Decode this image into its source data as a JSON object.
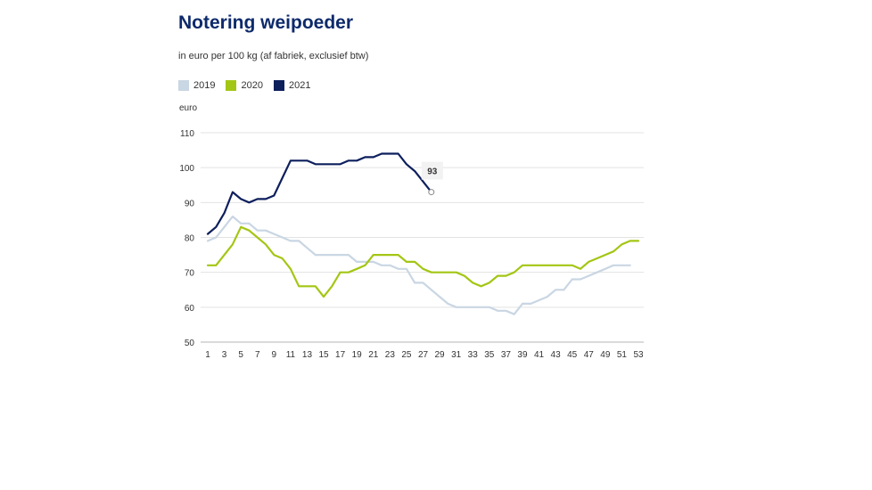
{
  "chart_data": {
    "type": "line",
    "title": "Notering weipoeder",
    "subtitle": "in euro per 100 kg (af fabriek, exclusief btw)",
    "ylabel": "euro",
    "xlabel": "",
    "ylim": [
      50,
      110
    ],
    "yticks": [
      50,
      60,
      70,
      80,
      90,
      100,
      110
    ],
    "xlim": [
      1,
      53
    ],
    "xticks": [
      1,
      3,
      5,
      7,
      9,
      11,
      13,
      15,
      17,
      19,
      21,
      23,
      25,
      27,
      29,
      31,
      33,
      35,
      37,
      39,
      41,
      43,
      45,
      47,
      49,
      51,
      53
    ],
    "grid": true,
    "legend_position": "top-left",
    "series": [
      {
        "name": "2019",
        "color": "#c9d6e3",
        "x": [
          1,
          2,
          3,
          4,
          5,
          6,
          7,
          8,
          9,
          10,
          11,
          12,
          13,
          14,
          15,
          16,
          17,
          18,
          19,
          20,
          21,
          22,
          23,
          24,
          25,
          26,
          27,
          28,
          29,
          30,
          31,
          32,
          33,
          34,
          35,
          36,
          37,
          38,
          39,
          40,
          41,
          42,
          43,
          44,
          45,
          46,
          47,
          48,
          49,
          50,
          51,
          52
        ],
        "values": [
          79,
          80,
          83,
          86,
          84,
          84,
          82,
          82,
          81,
          80,
          79,
          79,
          77,
          75,
          75,
          75,
          75,
          75,
          73,
          73,
          73,
          72,
          72,
          71,
          71,
          67,
          67,
          65,
          63,
          61,
          60,
          60,
          60,
          60,
          60,
          59,
          59,
          58,
          61,
          61,
          62,
          63,
          65,
          65,
          68,
          68,
          69,
          70,
          71,
          72,
          72,
          72
        ]
      },
      {
        "name": "2020",
        "color": "#a3c614",
        "x": [
          1,
          2,
          3,
          4,
          5,
          6,
          7,
          8,
          9,
          10,
          11,
          12,
          13,
          14,
          15,
          16,
          17,
          18,
          19,
          20,
          21,
          22,
          23,
          24,
          25,
          26,
          27,
          28,
          29,
          30,
          31,
          32,
          33,
          34,
          35,
          36,
          37,
          38,
          39,
          40,
          41,
          42,
          43,
          44,
          45,
          46,
          47,
          48,
          49,
          50,
          51,
          52,
          53
        ],
        "values": [
          72,
          72,
          75,
          78,
          83,
          82,
          80,
          78,
          75,
          74,
          71,
          66,
          66,
          66,
          63,
          66,
          70,
          70,
          71,
          72,
          75,
          75,
          75,
          75,
          73,
          73,
          71,
          70,
          70,
          70,
          70,
          69,
          67,
          66,
          67,
          69,
          69,
          70,
          72,
          72,
          72,
          72,
          72,
          72,
          72,
          71,
          73,
          74,
          75,
          76,
          78,
          79,
          79
        ]
      },
      {
        "name": "2021",
        "color": "#0d1f5c",
        "x": [
          1,
          2,
          3,
          4,
          5,
          6,
          7,
          8,
          9,
          10,
          11,
          12,
          13,
          14,
          15,
          16,
          17,
          18,
          19,
          20,
          21,
          22,
          23,
          24,
          25,
          26,
          27,
          28
        ],
        "values": [
          81,
          83,
          87,
          93,
          91,
          90,
          91,
          91,
          92,
          97,
          102,
          102,
          102,
          101,
          101,
          101,
          101,
          102,
          102,
          103,
          103,
          104,
          104,
          104,
          101,
          99,
          96,
          93
        ]
      }
    ],
    "annotations": [
      {
        "series": "2021",
        "x": 28,
        "value": 93,
        "label": "93"
      }
    ]
  }
}
